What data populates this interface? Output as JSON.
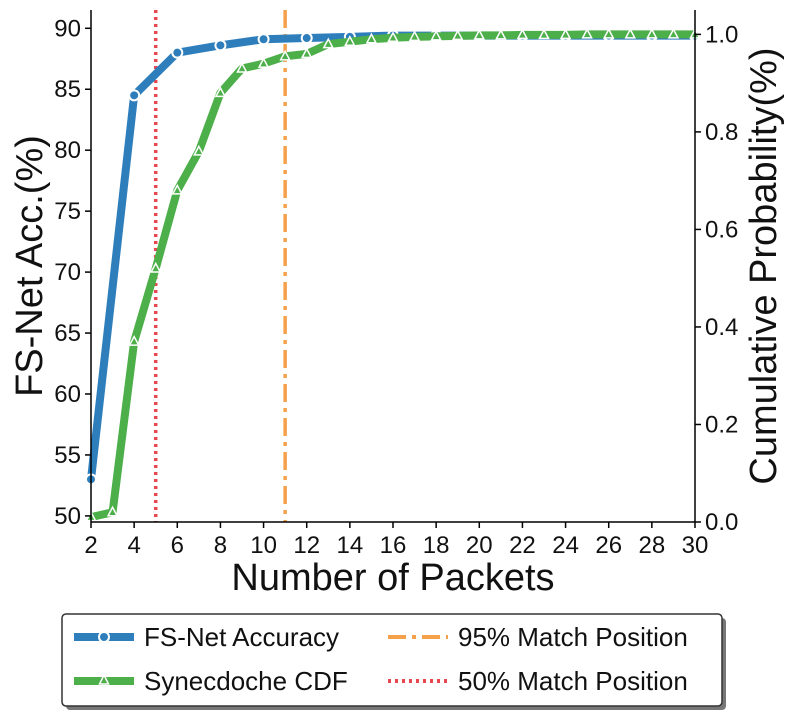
{
  "chart_data": {
    "type": "line",
    "title": "",
    "xlabel": "Number of Packets",
    "ylabel_left": "FS-Net Acc.(%)",
    "ylabel_right": "Cumulative Probability(%)",
    "xlim": [
      2,
      30
    ],
    "ylim_left": [
      49.5,
      91.5
    ],
    "ylim_right": [
      0.0,
      1.05
    ],
    "x_ticks": [
      "2",
      "4",
      "6",
      "8",
      "10",
      "12",
      "14",
      "16",
      "18",
      "20",
      "22",
      "24",
      "26",
      "28",
      "30"
    ],
    "y_left_ticks": [
      "50",
      "55",
      "60",
      "65",
      "70",
      "75",
      "80",
      "85",
      "90"
    ],
    "y_right_ticks": [
      "0.0",
      "0.2",
      "0.4",
      "0.6",
      "0.8",
      "1.0"
    ],
    "grid": false,
    "series": [
      {
        "name": "FS-Net Accuracy",
        "axis": "left",
        "color": "#2e7ebc",
        "marker": "circle",
        "style": "solid",
        "x": [
          2,
          4,
          6,
          8,
          10,
          12,
          14,
          16,
          18,
          20,
          22,
          24,
          26,
          28,
          30
        ],
        "y": [
          53.0,
          84.5,
          88.0,
          88.6,
          89.1,
          89.2,
          89.3,
          89.4,
          89.4,
          89.4,
          89.4,
          89.4,
          89.4,
          89.4,
          89.4
        ]
      },
      {
        "name": "Synecdoche CDF",
        "axis": "right",
        "color": "#4daf4a",
        "marker": "triangle",
        "style": "solid",
        "x": [
          2,
          3,
          4,
          5,
          6,
          7,
          8,
          9,
          10,
          11,
          12,
          13,
          14,
          15,
          16,
          17,
          18,
          19,
          20,
          21,
          22,
          23,
          24,
          25,
          26,
          27,
          28,
          29,
          30
        ],
        "y": [
          0.01,
          0.02,
          0.37,
          0.52,
          0.68,
          0.76,
          0.88,
          0.93,
          0.94,
          0.955,
          0.96,
          0.98,
          0.985,
          0.99,
          0.993,
          0.995,
          0.996,
          0.997,
          0.998,
          0.998,
          0.999,
          0.999,
          0.999,
          1.0,
          1.0,
          1.0,
          1.0,
          1.0,
          1.0
        ]
      }
    ],
    "vlines": [
      {
        "name": "95% Match Position",
        "x": 11,
        "color": "#f5a04a",
        "style": "dashdot"
      },
      {
        "name": "50% Match Position",
        "x": 5,
        "color": "#e8474f",
        "style": "dotted"
      }
    ],
    "legend": {
      "placement": "bottom-outside",
      "entries": [
        "FS-Net Accuracy",
        "95% Match Position",
        "Synecdoche CDF",
        "50% Match Position"
      ]
    }
  }
}
